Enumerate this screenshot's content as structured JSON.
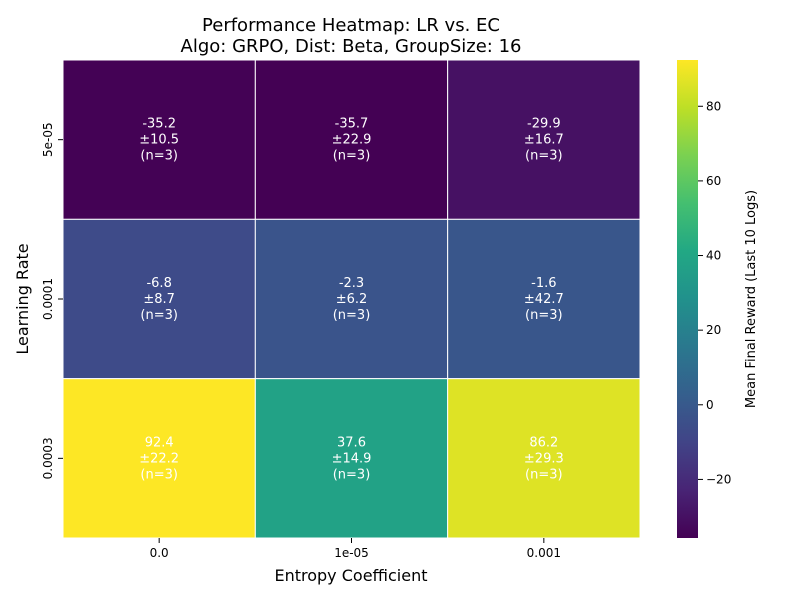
{
  "chart_data": {
    "type": "heatmap",
    "title_line1": "Performance Heatmap: LR vs. EC",
    "title_line2": "Algo: GRPO, Dist: Beta, GroupSize: 16",
    "xlabel": "Entropy Coefficient",
    "ylabel": "Learning Rate",
    "x_categories": [
      "0.0",
      "1e-05",
      "0.001"
    ],
    "y_categories": [
      "5e-05",
      "0.0001",
      "0.0003"
    ],
    "cells": [
      [
        {
          "mean": "-35.2",
          "std": "±10.5",
          "n": "(n=3)",
          "value": -35.2
        },
        {
          "mean": "-35.7",
          "std": "±22.9",
          "n": "(n=3)",
          "value": -35.7
        },
        {
          "mean": "-29.9",
          "std": "±16.7",
          "n": "(n=3)",
          "value": -29.9
        }
      ],
      [
        {
          "mean": "-6.8",
          "std": "±8.7",
          "n": "(n=3)",
          "value": -6.8
        },
        {
          "mean": "-2.3",
          "std": "±6.2",
          "n": "(n=3)",
          "value": -2.3
        },
        {
          "mean": "-1.6",
          "std": "±42.7",
          "n": "(n=3)",
          "value": -1.6
        }
      ],
      [
        {
          "mean": "92.4",
          "std": "±22.2",
          "n": "(n=3)",
          "value": 92.4
        },
        {
          "mean": "37.6",
          "std": "±14.9",
          "n": "(n=3)",
          "value": 37.6
        },
        {
          "mean": "86.2",
          "std": "±29.3",
          "n": "(n=3)",
          "value": 86.2
        }
      ]
    ],
    "colorbar": {
      "label": "Mean Final Reward (Last 10 Logs)",
      "range": [
        -35.7,
        92.4
      ],
      "ticks": [
        "−20",
        "0",
        "20",
        "40",
        "60",
        "80"
      ],
      "tick_values": [
        -20,
        0,
        20,
        40,
        60,
        80
      ],
      "colormap": "viridis"
    },
    "grid": false
  }
}
